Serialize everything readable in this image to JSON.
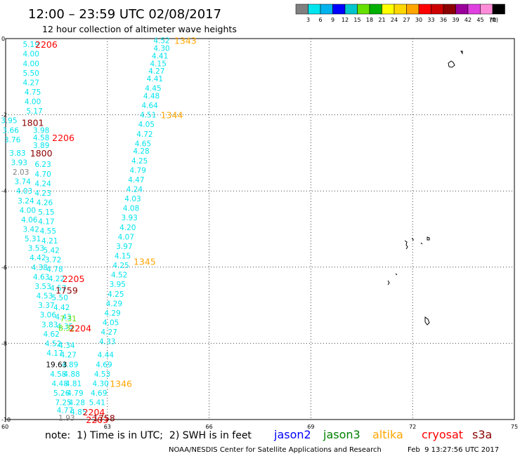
{
  "header": {
    "title": "12:00 – 23:59 UTC 02/08/2017",
    "subtitle": "12 hour collection of altimeter wave heights"
  },
  "legend_scale": {
    "colors": [
      "#808080",
      "#00e5ee",
      "#00b2ee",
      "#0000ff",
      "#00c5cd",
      "#66e000",
      "#00b000",
      "#ffff00",
      "#ffd700",
      "#ffa500",
      "#ff0000",
      "#cd0000",
      "#8b0000",
      "#9a009a",
      "#e040e0",
      "#ff8cd8",
      "#000000"
    ],
    "labels": [
      "3",
      "6",
      "9",
      "12",
      "15",
      "18",
      "21",
      "24",
      "27",
      "30",
      "33",
      "36",
      "39",
      "42",
      "45",
      "70",
      "(ft)"
    ]
  },
  "footer": {
    "note": "note:  1) Time is in UTC;  2) SWH is in feet",
    "credit": "NOAA/NESDIS Center for Satellite Applications and Research",
    "timestamp": "Feb  9 13:27:56 UTC 2017"
  },
  "missions": [
    {
      "name": "jason2",
      "color": "#0000ff"
    },
    {
      "name": "jason3",
      "color": "#008000"
    },
    {
      "name": "altika",
      "color": "#ffa500"
    },
    {
      "name": "cryosat",
      "color": "#ff0000"
    },
    {
      "name": "s3a",
      "color": "#8b0000"
    }
  ],
  "chart_data": {
    "type": "scatter",
    "title": "",
    "xlim": [
      60,
      75
    ],
    "ylim": [
      -10,
      0
    ],
    "x_ticks": [
      "60",
      "63",
      "66",
      "69",
      "72",
      "75"
    ],
    "y_ticks": [
      "0",
      "-2",
      "-4",
      "-6",
      "-8",
      "-10"
    ],
    "grid": true,
    "colors": {
      "low": "#00e5ee",
      "mid": "#808080",
      "high": "#66e000",
      "dark": "#000000"
    },
    "time_labels": [
      {
        "text": "1343",
        "lon": 65.3,
        "lat": -0.05,
        "color": "#ffa500"
      },
      {
        "text": "1344",
        "lon": 64.9,
        "lat": -2.0,
        "color": "#ffa500"
      },
      {
        "text": "1345",
        "lon": 64.1,
        "lat": -5.85,
        "color": "#ffa500"
      },
      {
        "text": "1346",
        "lon": 63.4,
        "lat": -9.05,
        "color": "#ffa500"
      },
      {
        "text": "2206",
        "lon": 61.2,
        "lat": -0.15,
        "color": "#ff0000"
      },
      {
        "text": "2206",
        "lon": 61.7,
        "lat": -2.6,
        "color": "#ff0000"
      },
      {
        "text": "2205",
        "lon": 62.0,
        "lat": -6.3,
        "color": "#ff0000"
      },
      {
        "text": "2204",
        "lon": 62.2,
        "lat": -7.6,
        "color": "#ff0000"
      },
      {
        "text": "2204",
        "lon": 62.6,
        "lat": -9.8,
        "color": "#ff0000"
      },
      {
        "text": "2203",
        "lon": 62.7,
        "lat": -10.0,
        "color": "#ff0000"
      },
      {
        "text": "1801",
        "lon": 60.8,
        "lat": -2.2,
        "color": "#8b0000"
      },
      {
        "text": "1800",
        "lon": 61.05,
        "lat": -3.0,
        "color": "#8b0000"
      },
      {
        "text": "1759",
        "lon": 61.8,
        "lat": -6.6,
        "color": "#8b0000"
      },
      {
        "text": "1758",
        "lon": 62.9,
        "lat": -9.95,
        "color": "#8b0000"
      }
    ],
    "tracks": [
      {
        "name": "pass-1343",
        "color": "low",
        "points": [
          {
            "lon": 64.6,
            "lat": -0.05,
            "swh": "4.52"
          },
          {
            "lon": 64.6,
            "lat": -0.25,
            "swh": "4.30"
          },
          {
            "lon": 64.55,
            "lat": -0.45,
            "swh": "4.41"
          },
          {
            "lon": 64.5,
            "lat": -0.65,
            "swh": "4.15"
          },
          {
            "lon": 64.45,
            "lat": -0.85,
            "swh": "4.27"
          },
          {
            "lon": 64.4,
            "lat": -1.05,
            "swh": "4.41"
          },
          {
            "lon": 64.35,
            "lat": -1.3,
            "swh": "4.45"
          },
          {
            "lon": 64.3,
            "lat": -1.5,
            "swh": "4.48"
          },
          {
            "lon": 64.25,
            "lat": -1.75,
            "swh": "4.64"
          },
          {
            "lon": 64.2,
            "lat": -2.0,
            "swh": "4.51"
          },
          {
            "lon": 64.15,
            "lat": -2.25,
            "swh": "4.05"
          },
          {
            "lon": 64.1,
            "lat": -2.5,
            "swh": "4.72"
          },
          {
            "lon": 64.05,
            "lat": -2.75,
            "swh": "4.65"
          },
          {
            "lon": 64.0,
            "lat": -2.95,
            "swh": "4.28"
          },
          {
            "lon": 63.95,
            "lat": -3.2,
            "swh": "4.25"
          },
          {
            "lon": 63.9,
            "lat": -3.45,
            "swh": "4.79"
          },
          {
            "lon": 63.85,
            "lat": -3.7,
            "swh": "4.47"
          },
          {
            "lon": 63.8,
            "lat": -3.95,
            "swh": "4.24"
          },
          {
            "lon": 63.75,
            "lat": -4.2,
            "swh": "4.03"
          },
          {
            "lon": 63.7,
            "lat": -4.45,
            "swh": "4.08"
          },
          {
            "lon": 63.65,
            "lat": -4.7,
            "swh": "3.93"
          },
          {
            "lon": 63.6,
            "lat": -4.95,
            "swh": "4.20"
          },
          {
            "lon": 63.55,
            "lat": -5.2,
            "swh": "4.07"
          },
          {
            "lon": 63.5,
            "lat": -5.45,
            "swh": "3.97"
          },
          {
            "lon": 63.45,
            "lat": -5.7,
            "swh": "4.15"
          },
          {
            "lon": 63.4,
            "lat": -5.95,
            "swh": "4.25"
          },
          {
            "lon": 63.35,
            "lat": -6.2,
            "swh": "4.52"
          },
          {
            "lon": 63.3,
            "lat": -6.45,
            "swh": "3.95"
          },
          {
            "lon": 63.25,
            "lat": -6.7,
            "swh": "4.25"
          },
          {
            "lon": 63.2,
            "lat": -6.95,
            "swh": "4.29"
          },
          {
            "lon": 63.15,
            "lat": -7.2,
            "swh": "4.29"
          },
          {
            "lon": 63.1,
            "lat": -7.45,
            "swh": "4.05"
          },
          {
            "lon": 63.05,
            "lat": -7.7,
            "swh": "4.27"
          },
          {
            "lon": 63.0,
            "lat": -7.95,
            "swh": "4.33"
          },
          {
            "lon": 62.95,
            "lat": -8.3,
            "swh": "4.44"
          },
          {
            "lon": 62.9,
            "lat": -8.55,
            "swh": "4.69"
          },
          {
            "lon": 62.85,
            "lat": -8.8,
            "swh": "4.53"
          },
          {
            "lon": 62.8,
            "lat": -9.05,
            "swh": "4.30"
          },
          {
            "lon": 62.75,
            "lat": -9.3,
            "swh": "4.69"
          },
          {
            "lon": 62.7,
            "lat": -9.55,
            "swh": "5.41"
          }
        ]
      },
      {
        "name": "pass-2206",
        "color": "low",
        "points": [
          {
            "lon": 60.75,
            "lat": -0.15,
            "swh": "5.19"
          },
          {
            "lon": 60.75,
            "lat": -0.4,
            "swh": "4.00"
          },
          {
            "lon": 60.75,
            "lat": -0.65,
            "swh": "4.00"
          },
          {
            "lon": 60.75,
            "lat": -0.9,
            "swh": "5.50"
          },
          {
            "lon": 60.75,
            "lat": -1.15,
            "swh": "4.27"
          },
          {
            "lon": 60.8,
            "lat": -1.4,
            "swh": "4.75"
          },
          {
            "lon": 60.8,
            "lat": -1.65,
            "swh": "4.00"
          },
          {
            "lon": 60.85,
            "lat": -1.9,
            "swh": "5.17"
          },
          {
            "lon": 61.05,
            "lat": -2.4,
            "swh": "3.98"
          },
          {
            "lon": 61.05,
            "lat": -2.6,
            "swh": "4.58"
          },
          {
            "lon": 61.05,
            "lat": -2.8,
            "swh": "3.89"
          },
          {
            "lon": 61.1,
            "lat": -3.3,
            "swh": "6.23"
          },
          {
            "lon": 61.1,
            "lat": -3.55,
            "swh": "4.70"
          },
          {
            "lon": 61.1,
            "lat": -3.8,
            "swh": "4.24"
          },
          {
            "lon": 61.1,
            "lat": -4.05,
            "swh": "4.23"
          },
          {
            "lon": 61.15,
            "lat": -4.3,
            "swh": "4.26"
          },
          {
            "lon": 61.2,
            "lat": -4.55,
            "swh": "5.15"
          },
          {
            "lon": 61.2,
            "lat": -4.8,
            "swh": "4.17"
          },
          {
            "lon": 61.25,
            "lat": -5.05,
            "swh": "4.55"
          },
          {
            "lon": 61.3,
            "lat": -5.3,
            "swh": "4.21"
          },
          {
            "lon": 61.35,
            "lat": -5.55,
            "swh": "5.42"
          },
          {
            "lon": 61.4,
            "lat": -5.8,
            "swh": "3.72"
          },
          {
            "lon": 61.45,
            "lat": -6.05,
            "swh": "4.78"
          },
          {
            "lon": 61.5,
            "lat": -6.3,
            "swh": "4.22"
          },
          {
            "lon": 61.55,
            "lat": -6.55,
            "swh": "4.57"
          },
          {
            "lon": 61.6,
            "lat": -6.8,
            "swh": "5.50"
          },
          {
            "lon": 61.65,
            "lat": -7.05,
            "swh": "4.42"
          },
          {
            "lon": 61.7,
            "lat": -7.3,
            "swh": "4.43"
          },
          {
            "lon": 61.75,
            "lat": -7.55,
            "swh": "4.35"
          },
          {
            "lon": 61.8,
            "lat": -8.05,
            "swh": "4.34"
          },
          {
            "lon": 61.85,
            "lat": -8.3,
            "swh": "4.27"
          },
          {
            "lon": 61.9,
            "lat": -8.55,
            "swh": "4.89"
          },
          {
            "lon": 61.95,
            "lat": -8.8,
            "swh": "4.88"
          },
          {
            "lon": 62.0,
            "lat": -9.05,
            "swh": "4.81"
          },
          {
            "lon": 62.05,
            "lat": -9.3,
            "swh": "4.79"
          },
          {
            "lon": 62.1,
            "lat": -9.55,
            "swh": "4.28"
          },
          {
            "lon": 62.15,
            "lat": -9.8,
            "swh": "4.85"
          }
        ]
      },
      {
        "name": "pass-1800",
        "color": "low",
        "points": [
          {
            "lon": 60.1,
            "lat": -2.15,
            "swh": "3.95"
          },
          {
            "lon": 60.15,
            "lat": -2.4,
            "swh": "3.66"
          },
          {
            "lon": 60.2,
            "lat": -2.65,
            "swh": "3.76"
          },
          {
            "lon": 60.35,
            "lat": -3.0,
            "swh": "3.83"
          },
          {
            "lon": 60.4,
            "lat": -3.25,
            "swh": "3.93"
          },
          {
            "lon": 60.45,
            "lat": -3.5,
            "swh": "2.03",
            "color": "mid"
          },
          {
            "lon": 60.5,
            "lat": -3.75,
            "swh": "3.74"
          },
          {
            "lon": 60.55,
            "lat": -4.0,
            "swh": "4.03"
          },
          {
            "lon": 60.6,
            "lat": -4.25,
            "swh": "3.24"
          },
          {
            "lon": 60.65,
            "lat": -4.5,
            "swh": "4.00"
          },
          {
            "lon": 60.7,
            "lat": -4.75,
            "swh": "4.06"
          },
          {
            "lon": 60.75,
            "lat": -5.0,
            "swh": "3.42"
          },
          {
            "lon": 60.8,
            "lat": -5.25,
            "swh": "5.31"
          },
          {
            "lon": 60.9,
            "lat": -5.5,
            "swh": "3.53"
          },
          {
            "lon": 60.95,
            "lat": -5.75,
            "swh": "4.42"
          },
          {
            "lon": 61.0,
            "lat": -6.0,
            "swh": "4.38"
          },
          {
            "lon": 61.05,
            "lat": -6.25,
            "swh": "4.63"
          },
          {
            "lon": 61.1,
            "lat": -6.5,
            "swh": "3.53"
          },
          {
            "lon": 61.15,
            "lat": -6.75,
            "swh": "4.53"
          },
          {
            "lon": 61.2,
            "lat": -7.0,
            "swh": "3.37"
          },
          {
            "lon": 61.25,
            "lat": -7.25,
            "swh": "3.06"
          },
          {
            "lon": 61.3,
            "lat": -7.5,
            "swh": "3.83"
          },
          {
            "lon": 61.35,
            "lat": -7.75,
            "swh": "4.62"
          },
          {
            "lon": 61.4,
            "lat": -8.0,
            "swh": "4.52"
          },
          {
            "lon": 61.45,
            "lat": -8.25,
            "swh": "4.17"
          },
          {
            "lon": 61.5,
            "lat": -8.55,
            "swh": "19.63",
            "color": "dark"
          },
          {
            "lon": 61.55,
            "lat": -8.8,
            "swh": "4.58"
          },
          {
            "lon": 61.6,
            "lat": -9.05,
            "swh": "4.48"
          },
          {
            "lon": 61.65,
            "lat": -9.3,
            "swh": "5.26"
          },
          {
            "lon": 61.7,
            "lat": -9.55,
            "swh": "7.25"
          },
          {
            "lon": 61.75,
            "lat": -9.75,
            "swh": "4.77"
          },
          {
            "lon": 61.8,
            "lat": -9.95,
            "swh": "1.93",
            "color": "mid"
          }
        ]
      },
      {
        "name": "pass-2204-extra",
        "color": "high",
        "points": [
          {
            "lon": 61.85,
            "lat": -7.35,
            "swh": "7.31"
          },
          {
            "lon": 61.8,
            "lat": -7.6,
            "swh": "8.32"
          }
        ]
      }
    ]
  }
}
